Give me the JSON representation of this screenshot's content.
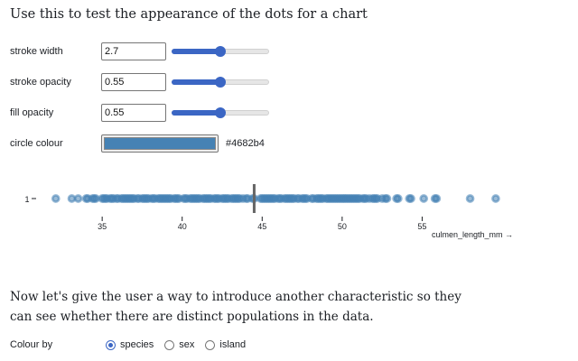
{
  "heading": "Use this to test the appearance of the dots for a chart",
  "controls": {
    "stroke_width": {
      "label": "stroke width",
      "value": "2.7",
      "fraction": 0.5
    },
    "stroke_opacity": {
      "label": "stroke opacity",
      "value": "0.55",
      "fraction": 0.5
    },
    "fill_opacity": {
      "label": "fill opacity",
      "value": "0.55",
      "fraction": 0.5
    },
    "circle_colour": {
      "label": "circle colour",
      "value": "#4682b4"
    }
  },
  "chart_data": {
    "type": "scatter",
    "xlabel": "culmen_length_mm →",
    "xlim": [
      32,
      60
    ],
    "ticks": [
      35,
      40,
      45,
      50,
      55
    ],
    "y_label": "1",
    "median": 44.5,
    "point_color": "#4682b4",
    "x": [
      32.1,
      33.1,
      33.5,
      34.0,
      34.1,
      34.4,
      34.5,
      34.6,
      35.0,
      35.1,
      35.2,
      35.3,
      35.5,
      35.6,
      35.7,
      35.9,
      36.0,
      36.2,
      36.3,
      36.4,
      36.5,
      36.6,
      36.7,
      36.8,
      36.9,
      37.0,
      37.2,
      37.3,
      37.5,
      37.6,
      37.7,
      37.8,
      37.9,
      38.1,
      38.2,
      38.3,
      38.5,
      38.6,
      38.7,
      38.8,
      38.9,
      39.0,
      39.1,
      39.2,
      39.3,
      39.5,
      39.6,
      39.7,
      39.8,
      40.1,
      40.2,
      40.3,
      40.5,
      40.6,
      40.7,
      40.8,
      40.9,
      41.0,
      41.1,
      41.3,
      41.4,
      41.5,
      41.6,
      41.7,
      41.8,
      42.0,
      42.1,
      42.2,
      42.3,
      42.5,
      42.6,
      42.7,
      42.8,
      42.9,
      43.1,
      43.2,
      43.3,
      43.4,
      43.5,
      43.6,
      43.8,
      44.0,
      44.1,
      44.4,
      44.5,
      44.9,
      45.0,
      45.1,
      45.2,
      45.3,
      45.4,
      45.5,
      45.6,
      45.7,
      45.8,
      46.0,
      46.1,
      46.2,
      46.4,
      46.5,
      46.6,
      46.7,
      46.8,
      46.9,
      47.0,
      47.2,
      47.3,
      47.5,
      47.6,
      47.7,
      47.8,
      48.1,
      48.2,
      48.4,
      48.5,
      48.6,
      48.7,
      48.8,
      49.0,
      49.1,
      49.2,
      49.3,
      49.4,
      49.5,
      49.6,
      49.7,
      49.8,
      49.9,
      50.0,
      50.1,
      50.2,
      50.3,
      50.4,
      50.5,
      50.6,
      50.7,
      50.8,
      50.9,
      51.0,
      51.1,
      51.3,
      51.4,
      51.5,
      51.7,
      51.9,
      52.0,
      52.1,
      52.2,
      52.5,
      52.7,
      52.8,
      53.4,
      53.5,
      54.2,
      54.3,
      55.1,
      55.8,
      55.9,
      58.0,
      59.6
    ]
  },
  "paragraph": "Now let's give the user a way to introduce another characteristic so they can see whether there are distinct populations in the data.",
  "colour_by": {
    "label": "Colour by",
    "options": [
      "species",
      "sex",
      "island"
    ],
    "selected": "species"
  }
}
